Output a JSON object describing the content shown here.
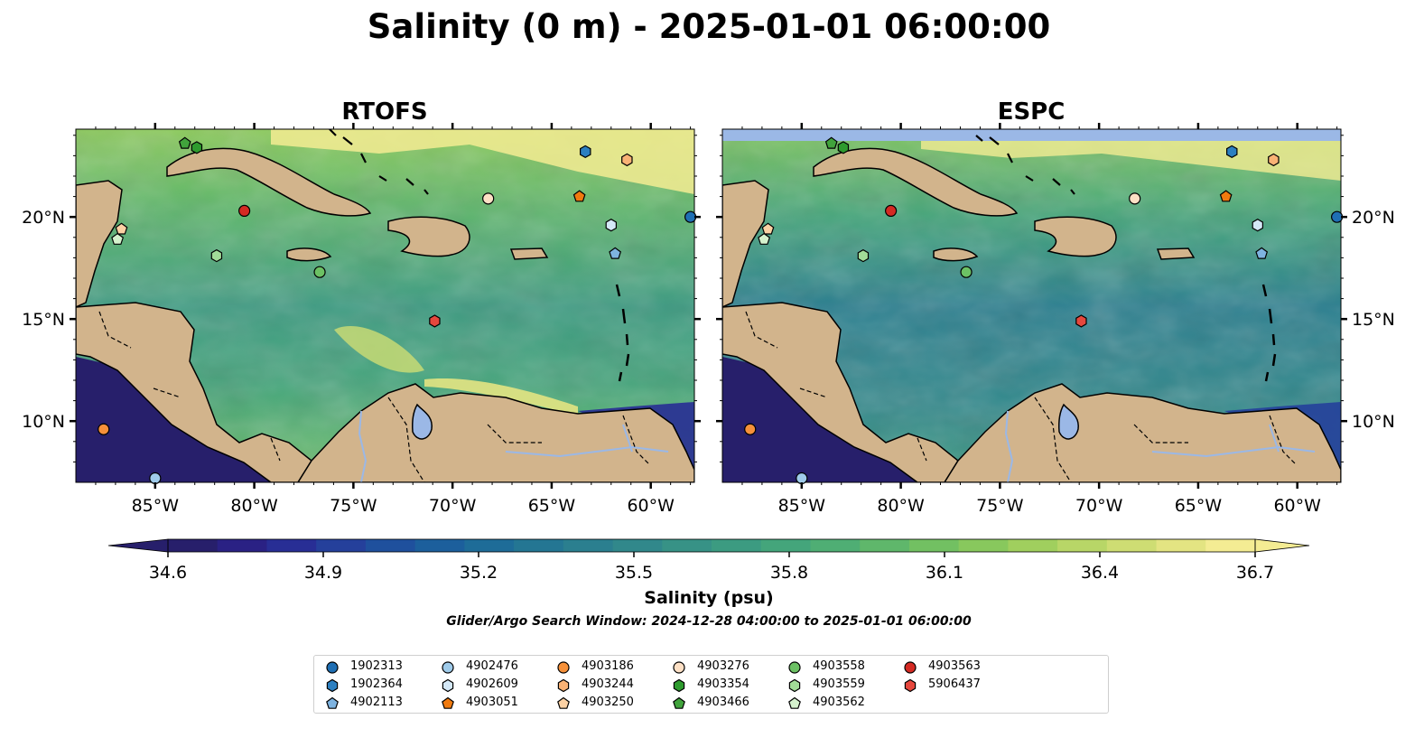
{
  "title": "Salinity (0 m) - 2025-01-01 06:00:00",
  "panels": [
    {
      "title": "RTOFS",
      "id": "rtofs"
    },
    {
      "title": "ESPC",
      "id": "espc"
    }
  ],
  "map": {
    "lon_range": [
      -89,
      -57.8
    ],
    "lat_range": [
      7.0,
      24.3
    ],
    "lon_ticks": [
      {
        "value": -85,
        "label": "85°W"
      },
      {
        "value": -80,
        "label": "80°W"
      },
      {
        "value": -75,
        "label": "75°W"
      },
      {
        "value": -70,
        "label": "70°W"
      },
      {
        "value": -65,
        "label": "65°W"
      },
      {
        "value": -60,
        "label": "60°W"
      }
    ],
    "lat_ticks": [
      {
        "value": 20,
        "label": "20°N"
      },
      {
        "value": 15,
        "label": "15°N"
      },
      {
        "value": 10,
        "label": "10°N"
      }
    ],
    "land_color": "#d2b48c",
    "lake_color": "#9bb8e6"
  },
  "colorbar": {
    "label": "Salinity (psu)",
    "ticks": [
      "34.6",
      "34.9",
      "35.2",
      "35.5",
      "35.8",
      "36.1",
      "36.4",
      "36.7"
    ],
    "range": [
      34.6,
      36.7
    ],
    "colors": [
      "#271f6b",
      "#2a2184",
      "#282e95",
      "#25409b",
      "#1f509d",
      "#1c5f9c",
      "#1e6c98",
      "#247693",
      "#2b7f8f",
      "#31888b",
      "#379286",
      "#3c9b81",
      "#44a57b",
      "#4fae74",
      "#5fb76b",
      "#72c062",
      "#88c85d",
      "#a0cf5e",
      "#b8d667",
      "#cedd73",
      "#e3e482",
      "#f4ec93"
    ],
    "extend": "both"
  },
  "subtitle": "Glider/Argo Search Window: 2024-12-28 04:00:00 to 2025-01-01 06:00:00",
  "legend": [
    {
      "id": "1902313",
      "marker": "circle",
      "color": "#1f6fb4"
    },
    {
      "id": "1902364",
      "marker": "hexagon",
      "color": "#2c7fc0"
    },
    {
      "id": "4902113",
      "marker": "pentagon",
      "color": "#7eb3e0"
    },
    {
      "id": "4902476",
      "marker": "circle",
      "color": "#9fcbea"
    },
    {
      "id": "4902609",
      "marker": "hexagon",
      "color": "#d4e8f7"
    },
    {
      "id": "4903051",
      "marker": "pentagon",
      "color": "#f07a0f"
    },
    {
      "id": "4903186",
      "marker": "circle",
      "color": "#f6913a"
    },
    {
      "id": "4903244",
      "marker": "hexagon",
      "color": "#f9b275"
    },
    {
      "id": "4903250",
      "marker": "pentagon",
      "color": "#fbd1a4"
    },
    {
      "id": "4903276",
      "marker": "circle",
      "color": "#fde0c5"
    },
    {
      "id": "4903354",
      "marker": "hexagon",
      "color": "#2e9b2e"
    },
    {
      "id": "4903466",
      "marker": "pentagon",
      "color": "#41a33c"
    },
    {
      "id": "4903558",
      "marker": "circle",
      "color": "#6cc164"
    },
    {
      "id": "4903559",
      "marker": "hexagon",
      "color": "#a2dc98"
    },
    {
      "id": "4903562",
      "marker": "pentagon",
      "color": "#d5f2cd"
    },
    {
      "id": "4903563",
      "marker": "circle",
      "color": "#d42a23"
    },
    {
      "id": "5906437",
      "marker": "hexagon",
      "color": "#e6473d"
    }
  ],
  "floats": [
    {
      "id": "1902313",
      "lon": -58.0,
      "lat": 20.0
    },
    {
      "id": "1902364",
      "lon": -63.3,
      "lat": 23.2
    },
    {
      "id": "4902113",
      "lon": -61.8,
      "lat": 18.2
    },
    {
      "id": "4902476",
      "lon": -85.0,
      "lat": 7.2
    },
    {
      "id": "4902609",
      "lon": -62.0,
      "lat": 19.6
    },
    {
      "id": "4903051",
      "lon": -63.6,
      "lat": 21.0
    },
    {
      "id": "4903186",
      "lon": -87.6,
      "lat": 9.6
    },
    {
      "id": "4903244",
      "lon": -61.2,
      "lat": 22.8
    },
    {
      "id": "4903250",
      "lon": -86.7,
      "lat": 19.4
    },
    {
      "id": "4903276",
      "lon": -68.2,
      "lat": 20.9
    },
    {
      "id": "4903354",
      "lon": -82.9,
      "lat": 23.4
    },
    {
      "id": "4903466",
      "lon": -83.5,
      "lat": 23.6
    },
    {
      "id": "4903558",
      "lon": -76.7,
      "lat": 17.3
    },
    {
      "id": "4903559",
      "lon": -81.9,
      "lat": 18.1
    },
    {
      "id": "4903562",
      "lon": -86.9,
      "lat": 18.9
    },
    {
      "id": "4903563",
      "lon": -80.5,
      "lat": 20.3
    },
    {
      "id": "5906437",
      "lon": -70.9,
      "lat": 14.9
    }
  ]
}
